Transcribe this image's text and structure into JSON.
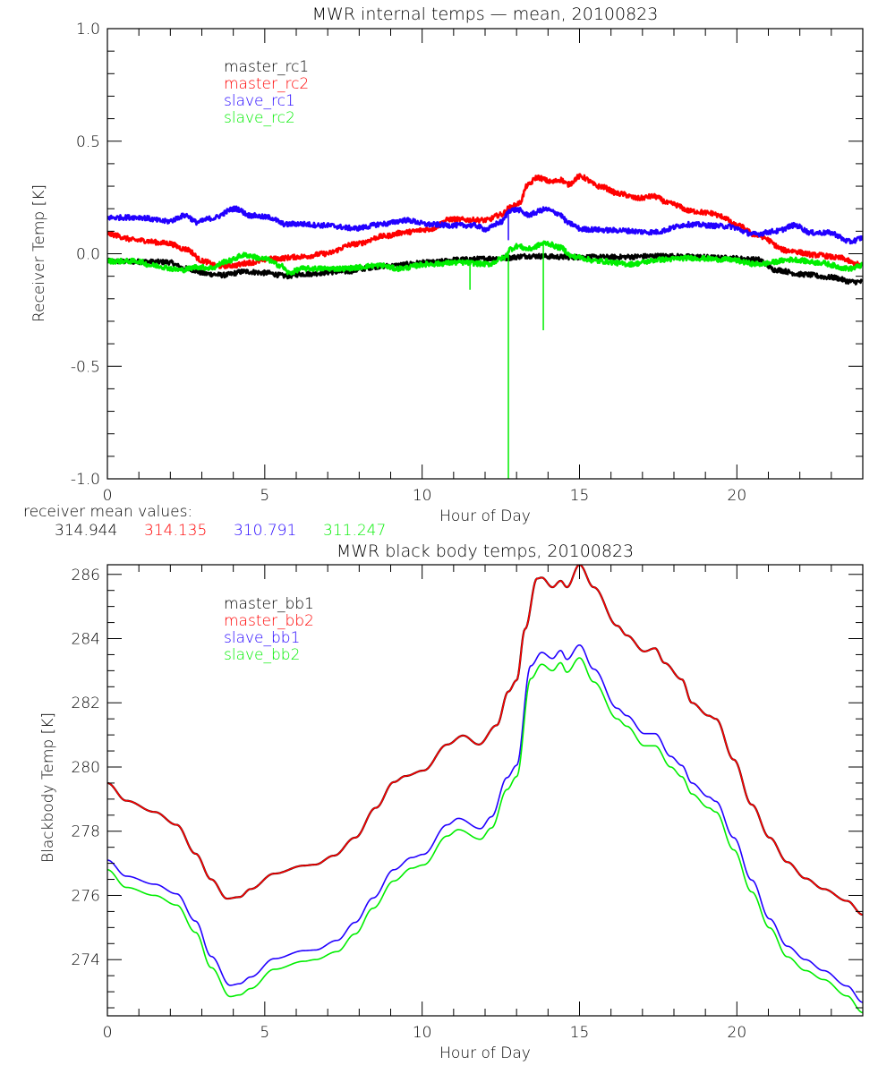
{
  "chart_data": [
    {
      "type": "line",
      "title": "MWR internal temps — mean, 20100823",
      "xlabel": "Hour of Day",
      "ylabel": "Receiver Temp [K]",
      "xlim": [
        0,
        24
      ],
      "ylim": [
        -1.0,
        1.0
      ],
      "xticks": [
        0,
        5,
        10,
        15,
        20
      ],
      "xtick_labels": [
        "0",
        "5",
        "10",
        "15",
        "20"
      ],
      "x_minor_step": 1,
      "yticks": [
        -1.0,
        -0.5,
        0.0,
        0.5,
        1.0
      ],
      "ytick_labels": [
        "-1.0",
        "-0.5",
        "0.0",
        "0.5",
        "1.0"
      ],
      "y_minor_step": 0.1,
      "grid": false,
      "legend_position": "top-left",
      "noisy": true,
      "series": [
        {
          "name": "master_rc1",
          "color": "#000000",
          "x": [
            0,
            0.95,
            1.9,
            2.5,
            3.2,
            3.7,
            4.36,
            5.0,
            5.7,
            6.2,
            7.4,
            8.8,
            10.24,
            11.2,
            12.6,
            13.36,
            14.7,
            16.12,
            17.63,
            18.48,
            19.7,
            20.66,
            21.24,
            22.1,
            23.0,
            23.7,
            24.0
          ],
          "y": [
            -0.033,
            -0.035,
            -0.037,
            -0.066,
            -0.09,
            -0.095,
            -0.079,
            -0.085,
            -0.099,
            -0.09,
            -0.08,
            -0.055,
            -0.039,
            -0.026,
            -0.019,
            -0.01,
            -0.015,
            -0.015,
            -0.01,
            -0.013,
            -0.019,
            -0.026,
            -0.072,
            -0.092,
            -0.105,
            -0.125,
            -0.125
          ]
        },
        {
          "name": "master_rc2",
          "color": "#ff0000",
          "x": [
            0,
            0.95,
            1.9,
            2.5,
            3.05,
            3.5,
            4.0,
            4.55,
            5.2,
            6.2,
            6.9,
            7.87,
            8.8,
            9.47,
            10.24,
            10.9,
            11.66,
            12.03,
            12.5,
            12.8,
            13.08,
            13.36,
            13.65,
            14.13,
            14.4,
            14.64,
            15.01,
            15.64,
            16.29,
            16.86,
            17.34,
            17.9,
            18.57,
            19.2,
            19.5,
            20.0,
            20.66,
            21.6,
            22.55,
            23.3,
            23.8,
            24.0
          ],
          "y": [
            0.087,
            0.06,
            0.047,
            0.02,
            -0.033,
            -0.055,
            -0.052,
            -0.039,
            -0.023,
            -0.013,
            0.0,
            0.043,
            0.078,
            0.096,
            0.109,
            0.153,
            0.15,
            0.149,
            0.173,
            0.205,
            0.224,
            0.305,
            0.339,
            0.319,
            0.329,
            0.308,
            0.343,
            0.299,
            0.266,
            0.246,
            0.255,
            0.222,
            0.189,
            0.18,
            0.166,
            0.126,
            0.08,
            0.014,
            -0.006,
            -0.019,
            -0.046,
            -0.052
          ]
        },
        {
          "name": "slave_rc1",
          "color": "#2200ff",
          "x": [
            0,
            0.95,
            1.9,
            2.5,
            2.84,
            3.3,
            4.07,
            4.55,
            5.1,
            5.7,
            5.97,
            6.9,
            7.87,
            8.8,
            9.47,
            10.24,
            10.9,
            11.66,
            12.03,
            12.5,
            12.8,
            13.03,
            13.36,
            13.93,
            14.3,
            14.7,
            15.07,
            16.12,
            17.34,
            18.48,
            19.7,
            20.56,
            21.24,
            21.84,
            22.37,
            22.95,
            23.6,
            24.0
          ],
          "y": [
            0.16,
            0.162,
            0.144,
            0.17,
            0.14,
            0.157,
            0.2,
            0.17,
            0.162,
            0.13,
            0.133,
            0.126,
            0.113,
            0.133,
            0.149,
            0.13,
            0.126,
            0.126,
            0.109,
            0.14,
            0.193,
            0.196,
            0.173,
            0.197,
            0.18,
            0.133,
            0.109,
            0.104,
            0.096,
            0.13,
            0.122,
            0.087,
            0.1,
            0.126,
            0.093,
            0.093,
            0.054,
            0.07
          ]
        },
        {
          "name": "slave_rc2",
          "color": "#00ee00",
          "x": [
            0,
            0.95,
            1.42,
            2.37,
            2.84,
            3.3,
            3.8,
            4.36,
            5.0,
            5.5,
            5.77,
            6.2,
            7.4,
            8.7,
            9.2,
            10.24,
            11.2,
            12.1,
            12.6,
            12.8,
            13.03,
            13.36,
            13.93,
            14.4,
            14.78,
            15.64,
            16.58,
            17.63,
            18.48,
            19.7,
            20.66,
            21.8,
            22.55,
            23.6,
            24.0
          ],
          "y": [
            -0.033,
            -0.033,
            -0.052,
            -0.072,
            -0.059,
            -0.063,
            -0.033,
            -0.006,
            -0.023,
            -0.052,
            -0.085,
            -0.066,
            -0.066,
            -0.052,
            -0.066,
            -0.046,
            -0.039,
            -0.046,
            -0.019,
            0.021,
            0.034,
            0.021,
            0.047,
            0.027,
            -0.013,
            -0.033,
            -0.046,
            -0.026,
            -0.019,
            -0.026,
            -0.046,
            -0.026,
            -0.039,
            -0.066,
            -0.052
          ],
          "spikes": [
            {
              "x": 11.52,
              "y": -0.16
            },
            {
              "x": 12.74,
              "y": -1.0
            },
            {
              "x": 13.85,
              "y": -0.34
            }
          ]
        }
      ],
      "extra_spikes": [
        {
          "series": "slave_rc1",
          "x": 12.74,
          "y": 0.06
        }
      ],
      "annotation": {
        "label": "receiver mean values:",
        "values": [
          {
            "text": "314.944",
            "color": "#000000"
          },
          {
            "text": "314.135",
            "color": "#ff0000"
          },
          {
            "text": "310.791",
            "color": "#2200ff"
          },
          {
            "text": "311.247",
            "color": "#00ee00"
          }
        ]
      }
    },
    {
      "type": "line",
      "title": "MWR black body temps, 20100823",
      "xlabel": "Hour of Day",
      "ylabel": "Blackbody Temp [K]",
      "xlim": [
        0,
        24
      ],
      "ylim": [
        272.25,
        286.3
      ],
      "xticks": [
        0,
        5,
        10,
        15,
        20
      ],
      "xtick_labels": [
        "0",
        "5",
        "10",
        "15",
        "20"
      ],
      "x_minor_step": 1,
      "yticks": [
        274,
        276,
        278,
        280,
        282,
        284,
        286
      ],
      "ytick_labels": [
        "274",
        "276",
        "278",
        "280",
        "282",
        "284",
        "286"
      ],
      "y_minor_step": 0.5,
      "grid": false,
      "legend_position": "top-left",
      "noisy": false,
      "series": [
        {
          "name": "master_bb1",
          "color": "#000000",
          "x": [
            0,
            0.6,
            1.5,
            2.2,
            2.8,
            3.3,
            3.8,
            4.2,
            4.55,
            5.3,
            6.25,
            6.6,
            7.2,
            7.87,
            8.53,
            9.1,
            9.47,
            10.04,
            10.8,
            11.3,
            11.8,
            12.37,
            12.74,
            13.0,
            13.27,
            13.65,
            13.8,
            14.14,
            14.4,
            14.6,
            15.0,
            15.45,
            16.2,
            16.5,
            17.06,
            17.4,
            17.7,
            18.25,
            18.57,
            19.1,
            19.33,
            19.9,
            20.47,
            21.04,
            21.6,
            22.18,
            22.75,
            23.5,
            24.0
          ],
          "y": [
            279.5,
            278.95,
            278.6,
            278.2,
            277.3,
            276.5,
            275.9,
            275.95,
            276.2,
            276.68,
            276.93,
            276.96,
            277.24,
            277.8,
            278.73,
            279.53,
            279.72,
            279.89,
            280.7,
            280.98,
            280.7,
            281.3,
            282.35,
            282.7,
            284.3,
            285.87,
            285.9,
            285.6,
            285.8,
            285.6,
            286.3,
            285.6,
            284.4,
            284.1,
            283.6,
            283.7,
            283.24,
            282.73,
            282.0,
            281.6,
            281.5,
            280.23,
            278.83,
            277.8,
            277.04,
            276.53,
            276.2,
            275.83,
            275.4
          ]
        },
        {
          "name": "master_bb2",
          "color": "#ff0000",
          "x": [
            0,
            0.6,
            1.5,
            2.2,
            2.8,
            3.3,
            3.8,
            4.2,
            4.55,
            5.3,
            6.25,
            6.6,
            7.2,
            7.87,
            8.53,
            9.1,
            9.47,
            10.04,
            10.8,
            11.3,
            11.8,
            12.37,
            12.74,
            13.0,
            13.27,
            13.65,
            13.8,
            14.14,
            14.4,
            14.6,
            15.0,
            15.45,
            16.2,
            16.5,
            17.06,
            17.4,
            17.7,
            18.25,
            18.57,
            19.1,
            19.33,
            19.9,
            20.47,
            21.04,
            21.6,
            22.18,
            22.75,
            23.5,
            24.0
          ],
          "y": [
            279.5,
            278.95,
            278.6,
            278.2,
            277.3,
            276.5,
            275.9,
            275.95,
            276.2,
            276.68,
            276.93,
            276.96,
            277.24,
            277.8,
            278.73,
            279.53,
            279.72,
            279.89,
            280.7,
            280.98,
            280.7,
            281.3,
            282.35,
            282.7,
            284.3,
            285.87,
            285.9,
            285.6,
            285.8,
            285.6,
            286.3,
            285.6,
            284.4,
            284.1,
            283.6,
            283.7,
            283.24,
            282.73,
            282.0,
            281.6,
            281.5,
            280.23,
            278.83,
            277.8,
            277.04,
            276.53,
            276.2,
            275.83,
            275.4
          ]
        },
        {
          "name": "slave_bb1",
          "color": "#2200ff",
          "x": [
            0,
            0.6,
            1.5,
            2.2,
            2.8,
            3.3,
            3.9,
            4.2,
            4.55,
            5.3,
            6.25,
            6.6,
            7.3,
            7.87,
            8.44,
            9.1,
            9.67,
            10.04,
            10.8,
            11.15,
            11.85,
            12.2,
            12.7,
            13.0,
            13.45,
            13.8,
            14.14,
            14.4,
            14.6,
            15.0,
            15.45,
            16.2,
            16.5,
            17.06,
            17.4,
            17.9,
            18.25,
            18.57,
            19.1,
            19.33,
            19.9,
            20.47,
            21.04,
            21.6,
            22.18,
            22.75,
            23.5,
            24.0
          ],
          "y": [
            277.1,
            276.6,
            276.35,
            276.05,
            275.2,
            274.1,
            273.2,
            273.25,
            273.46,
            274.03,
            274.28,
            274.3,
            274.6,
            275.16,
            275.92,
            276.8,
            277.18,
            277.28,
            278.2,
            278.4,
            278.08,
            278.45,
            279.67,
            280.05,
            283.15,
            283.57,
            283.38,
            283.63,
            283.35,
            283.8,
            283.05,
            281.83,
            281.6,
            281.04,
            281.04,
            280.33,
            280.05,
            279.5,
            279.07,
            278.93,
            277.8,
            276.48,
            275.27,
            274.42,
            274.0,
            273.66,
            273.18,
            272.67
          ]
        },
        {
          "name": "slave_bb2",
          "color": "#00ee00",
          "x": [
            0,
            0.6,
            1.5,
            2.2,
            2.8,
            3.3,
            3.9,
            4.2,
            4.55,
            5.3,
            6.25,
            6.6,
            7.3,
            7.87,
            8.44,
            9.1,
            9.67,
            10.04,
            10.8,
            11.15,
            11.85,
            12.2,
            12.7,
            13.0,
            13.45,
            13.8,
            14.14,
            14.4,
            14.6,
            15.0,
            15.45,
            16.2,
            16.5,
            17.06,
            17.4,
            17.9,
            18.25,
            18.57,
            19.1,
            19.33,
            19.9,
            20.47,
            21.04,
            21.6,
            22.18,
            22.75,
            23.5,
            24.0
          ],
          "y": [
            276.8,
            276.25,
            276.0,
            275.7,
            274.85,
            273.75,
            272.85,
            272.9,
            273.1,
            273.7,
            273.95,
            274.0,
            274.25,
            274.8,
            275.6,
            276.45,
            276.85,
            276.95,
            277.85,
            278.05,
            277.75,
            278.1,
            279.3,
            279.7,
            282.75,
            283.2,
            283.0,
            283.25,
            282.95,
            283.4,
            282.65,
            281.5,
            281.27,
            280.66,
            280.66,
            280.0,
            279.7,
            279.16,
            278.73,
            278.6,
            277.42,
            276.11,
            274.99,
            274.09,
            273.66,
            273.38,
            272.87,
            272.35
          ]
        }
      ]
    }
  ]
}
